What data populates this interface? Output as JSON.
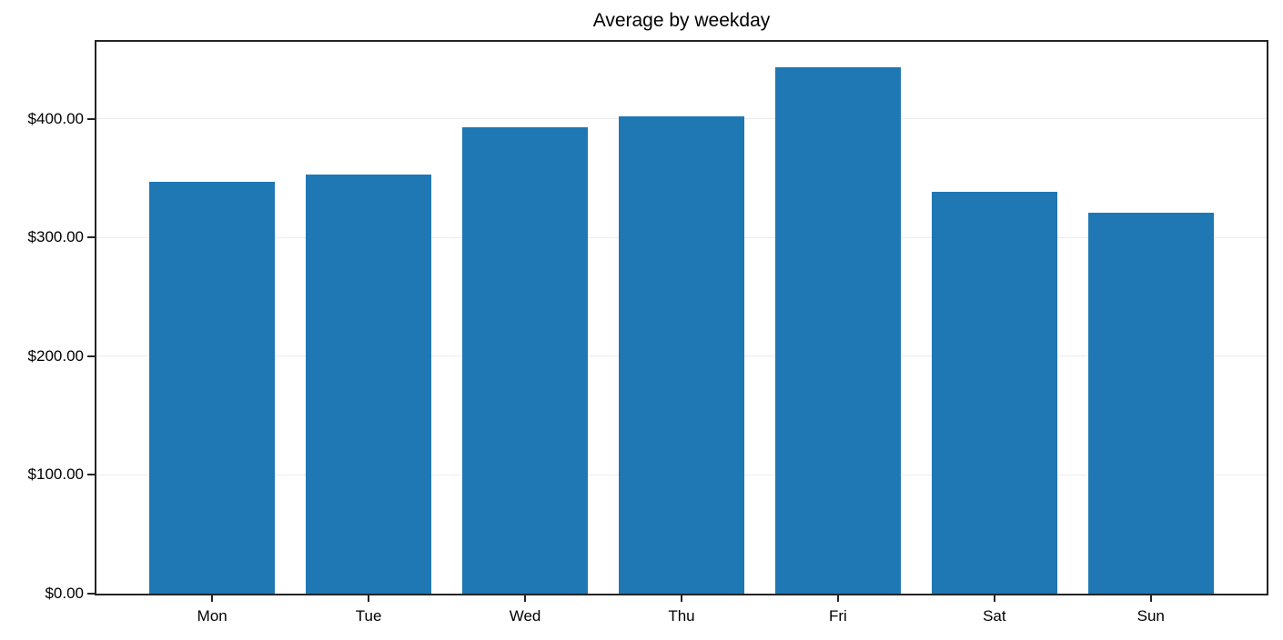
{
  "chart_data": {
    "type": "bar",
    "title": "Average by weekday",
    "categories": [
      "Mon",
      "Tue",
      "Wed",
      "Thu",
      "Fri",
      "Sat",
      "Sun"
    ],
    "values": [
      346.7,
      352.8,
      393.1,
      401.9,
      443.2,
      338.8,
      320.8
    ],
    "xlabel": "",
    "ylabel": "",
    "y_ticks": [
      0,
      100,
      200,
      300,
      400
    ],
    "y_tick_labels": [
      "$0.00",
      "$100.00",
      "$200.00",
      "$300.00",
      "$400.00"
    ],
    "ylim": [
      0,
      465
    ],
    "bar_color": "#1f77b4",
    "grid": "horizontal-only",
    "gridline_color": "#ececec",
    "legend": "none"
  }
}
